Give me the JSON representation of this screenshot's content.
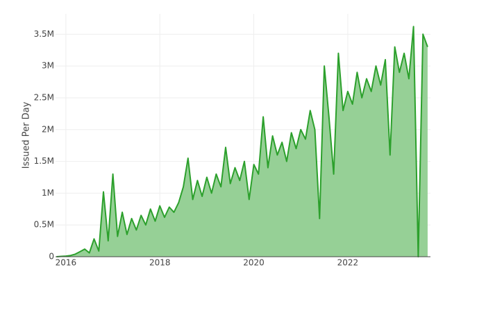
{
  "chart_data": {
    "type": "area",
    "y_label": "Issued Per Day",
    "x": [
      2015.8,
      2015.9,
      2016.0,
      2016.1,
      2016.2,
      2016.3,
      2016.4,
      2016.5,
      2016.6,
      2016.7,
      2016.8,
      2016.9,
      2017.0,
      2017.1,
      2017.2,
      2017.3,
      2017.4,
      2017.5,
      2017.6,
      2017.7,
      2017.8,
      2017.9,
      2018.0,
      2018.1,
      2018.2,
      2018.3,
      2018.4,
      2018.5,
      2018.6,
      2018.7,
      2018.8,
      2018.9,
      2019.0,
      2019.1,
      2019.2,
      2019.3,
      2019.4,
      2019.5,
      2019.6,
      2019.7,
      2019.8,
      2019.9,
      2020.0,
      2020.1,
      2020.2,
      2020.3,
      2020.4,
      2020.5,
      2020.6,
      2020.7,
      2020.8,
      2020.9,
      2021.0,
      2021.1,
      2021.2,
      2021.3,
      2021.4,
      2021.5,
      2021.6,
      2021.7,
      2021.8,
      2021.9,
      2022.0,
      2022.1,
      2022.2,
      2022.3,
      2022.4,
      2022.5,
      2022.6,
      2022.7,
      2022.8,
      2022.9,
      2023.0,
      2023.1,
      2023.2,
      2023.3,
      2023.4,
      2023.5,
      2023.6,
      2023.7
    ],
    "values": [
      0,
      5000,
      10000,
      20000,
      40000,
      80000,
      120000,
      60000,
      280000,
      90000,
      1020000,
      250000,
      1300000,
      320000,
      700000,
      350000,
      600000,
      420000,
      650000,
      500000,
      750000,
      560000,
      800000,
      620000,
      780000,
      700000,
      850000,
      1100000,
      1550000,
      900000,
      1200000,
      950000,
      1250000,
      1000000,
      1300000,
      1100000,
      1720000,
      1150000,
      1400000,
      1200000,
      1500000,
      900000,
      1450000,
      1300000,
      2200000,
      1400000,
      1900000,
      1600000,
      1800000,
      1500000,
      1950000,
      1700000,
      2000000,
      1850000,
      2300000,
      2000000,
      600000,
      3000000,
      2200000,
      1300000,
      3200000,
      2300000,
      2600000,
      2400000,
      2900000,
      2500000,
      2800000,
      2600000,
      3000000,
      2700000,
      3100000,
      1600000,
      3300000,
      2900000,
      3200000,
      2800000,
      3620000,
      0,
      3500000,
      3300000
    ],
    "color": "#2ca02c",
    "fill": "#96d096",
    "xlim": [
      2015.78,
      2023.76
    ],
    "xticks": [
      2016,
      2018,
      2020,
      2022
    ],
    "ylim": [
      0,
      3820000
    ],
    "yticks": [
      0,
      {
        "value": 500000,
        "label": "0.5M"
      },
      {
        "value": 1000000,
        "label": "1M"
      },
      {
        "value": 1500000,
        "label": "1.5M"
      },
      {
        "value": 2000000,
        "label": "2M"
      },
      {
        "value": 2500000,
        "label": "2.5M"
      },
      {
        "value": 3000000,
        "label": "3M"
      },
      {
        "value": 3500000,
        "label": "3.5M"
      }
    ],
    "grid": true
  }
}
